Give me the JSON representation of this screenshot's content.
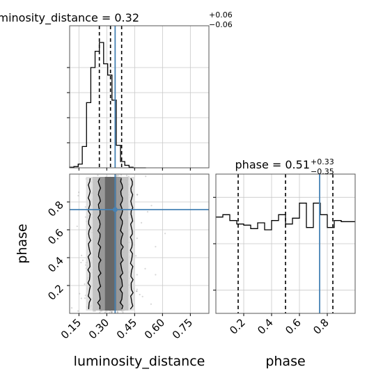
{
  "chart_data": [
    {
      "type": "histogram",
      "panel": "marginal",
      "parameter": "luminosity_distance",
      "title_name": "luminosity_distance",
      "title_value": "0.32",
      "title_plus": "+0.06",
      "title_minus": "−0.06",
      "xlim": [
        0.1,
        0.85
      ],
      "grid": true,
      "bin_edges": [
        0.1,
        0.123,
        0.146,
        0.168,
        0.191,
        0.214,
        0.237,
        0.26,
        0.283,
        0.305,
        0.328,
        0.351,
        0.374,
        0.397,
        0.42,
        0.442,
        0.465,
        0.488,
        0.511
      ],
      "counts": [
        0.005,
        0.01,
        0.03,
        0.17,
        0.52,
        0.8,
        0.93,
        1.0,
        0.83,
        0.74,
        0.54,
        0.18,
        0.05,
        0.02,
        0.005,
        0.0,
        0.0,
        0.0
      ],
      "quantiles": [
        0.26,
        0.32,
        0.38
      ],
      "truth": 0.345
    },
    {
      "type": "histogram",
      "panel": "marginal",
      "parameter": "phase",
      "title_name": "phase",
      "title_value": "0.51",
      "title_plus": "+0.33",
      "title_minus": "−0.35",
      "xlim": [
        0.0,
        1.0
      ],
      "xticks": [
        "0.2",
        "0.4",
        "0.6",
        "0.8"
      ],
      "grid": true,
      "bin_edges": [
        0.0,
        0.05,
        0.1,
        0.15,
        0.2,
        0.25,
        0.3,
        0.35,
        0.4,
        0.45,
        0.5,
        0.55,
        0.6,
        0.65,
        0.7,
        0.75,
        0.8,
        0.85,
        0.9,
        0.95,
        1.0
      ],
      "counts": [
        0.83,
        0.85,
        0.8,
        0.77,
        0.76,
        0.73,
        0.78,
        0.72,
        0.8,
        0.85,
        0.77,
        0.82,
        0.95,
        0.74,
        0.95,
        0.85,
        0.74,
        0.8,
        0.79,
        0.79
      ],
      "quantiles": [
        0.16,
        0.5,
        0.84
      ],
      "truth": 0.745
    },
    {
      "type": "scatter",
      "panel": "joint",
      "x_parameter": "luminosity_distance",
      "y_parameter": "phase",
      "xlabel": "luminosity_distance",
      "ylabel": "phase",
      "xlim": [
        0.1,
        0.85
      ],
      "ylim": [
        0.0,
        1.0
      ],
      "xticks": [
        "0.15",
        "0.30",
        "0.45",
        "0.60",
        "0.75"
      ],
      "yticks": [
        "0.2",
        "0.4",
        "0.6",
        "0.8"
      ],
      "x_center": 0.32,
      "x_sigma": 0.06,
      "density_contours": true,
      "truth": {
        "x": 0.345,
        "y": 0.745
      }
    }
  ],
  "colors": {
    "ink": "#000000",
    "truth": "#4682b4",
    "grid": "#c8c8c8",
    "points": "#8c8c8c",
    "background": "#ffffff"
  }
}
